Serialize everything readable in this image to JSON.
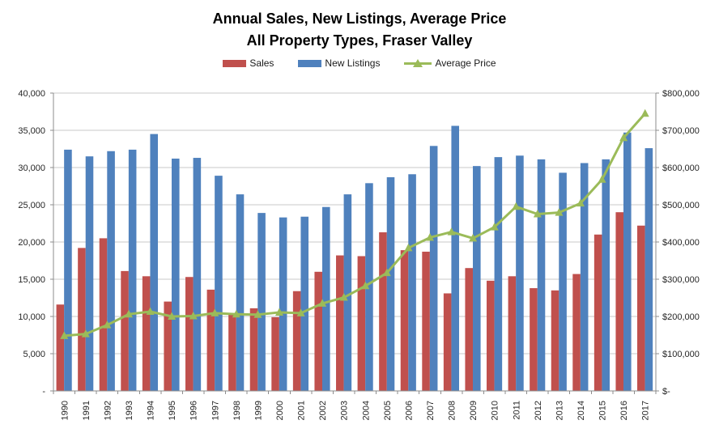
{
  "chart": {
    "title_line1": "Annual Sales, New Listings, Average Price",
    "title_line2": "All Property Types, Fraser Valley"
  },
  "legend": {
    "sales": "Sales",
    "new_listings": "New Listings",
    "average_price": "Average Price"
  },
  "chart_data": {
    "type": "bar",
    "subtype": "combo-bar-line-dual-axis",
    "title": "Annual Sales, New Listings, Average Price",
    "subtitle": "All Property Types, Fraser Valley",
    "grid": true,
    "legend_position": "top",
    "categories": [
      "1990",
      "1991",
      "1992",
      "1993",
      "1994",
      "1995",
      "1996",
      "1997",
      "1998",
      "1999",
      "2000",
      "2001",
      "2002",
      "2003",
      "2004",
      "2005",
      "2006",
      "2007",
      "2008",
      "2009",
      "2010",
      "2011",
      "2012",
      "2013",
      "2014",
      "2015",
      "2016",
      "2017"
    ],
    "series": [
      {
        "name": "Sales",
        "type": "bar",
        "axis": "left",
        "color": "#C0504D",
        "values": [
          11600,
          19200,
          20500,
          16100,
          15400,
          12000,
          15300,
          13600,
          10300,
          11100,
          9900,
          13400,
          16000,
          18200,
          18100,
          21300,
          18900,
          18700,
          13100,
          16500,
          14800,
          15400,
          13800,
          13500,
          15700,
          21000,
          24000,
          22200
        ]
      },
      {
        "name": "New Listings",
        "type": "bar",
        "axis": "left",
        "color": "#4F81BD",
        "values": [
          32400,
          31500,
          32200,
          32400,
          34500,
          31200,
          31300,
          28900,
          26400,
          23900,
          23300,
          23400,
          24700,
          26400,
          27900,
          28700,
          29100,
          32900,
          35600,
          30200,
          31400,
          31600,
          31100,
          29300,
          30600,
          31100,
          34700,
          32600
        ]
      },
      {
        "name": "Average Price",
        "type": "line",
        "axis": "right",
        "color": "#9BBB59",
        "marker": "triangle",
        "values": [
          148000,
          153000,
          177000,
          206000,
          213000,
          200000,
          201000,
          209000,
          206000,
          205000,
          211000,
          209000,
          235000,
          251000,
          282000,
          317000,
          384000,
          412000,
          427000,
          410000,
          440000,
          495000,
          475000,
          479000,
          504000,
          568000,
          680000,
          745000
        ]
      }
    ],
    "left_axis": {
      "min": 0,
      "max": 40000,
      "step": 5000,
      "tick_labels": [
        "-",
        "5,000",
        "10,000",
        "15,000",
        "20,000",
        "25,000",
        "30,000",
        "35,000",
        "40,000"
      ]
    },
    "right_axis": {
      "min": 0,
      "max": 800000,
      "step": 100000,
      "tick_labels": [
        "$-",
        "$100,000",
        "$200,000",
        "$300,000",
        "$400,000",
        "$500,000",
        "$600,000",
        "$700,000",
        "$800,000"
      ]
    },
    "colors": {
      "gridline": "#C9C9C9",
      "axis_line": "#8C8C8C",
      "tick_text": "#262626"
    }
  }
}
